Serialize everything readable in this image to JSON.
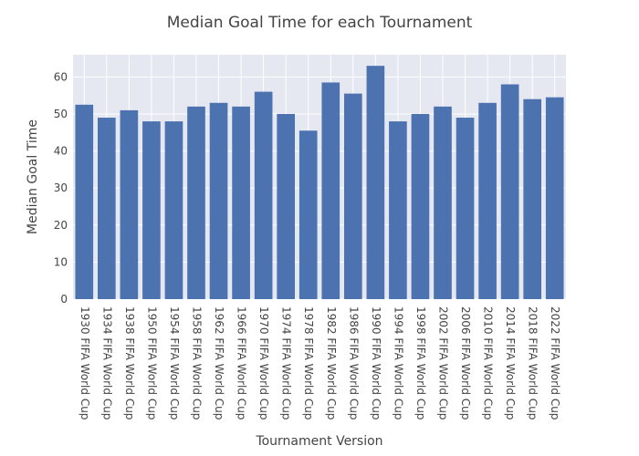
{
  "chart_data": {
    "type": "bar",
    "title": "Median Goal Time for each Tournament",
    "xlabel": "Tournament Version",
    "ylabel": "Median Goal Time",
    "ylim": [
      0,
      66
    ],
    "yticks": [
      0,
      10,
      20,
      30,
      40,
      50,
      60
    ],
    "grid": true,
    "bar_color": "#4c72b0",
    "plot_bg": "#e5e7f1",
    "categories": [
      "1930 FIFA World Cup",
      "1934 FIFA World Cup",
      "1938 FIFA World Cup",
      "1950 FIFA World Cup",
      "1954 FIFA World Cup",
      "1958 FIFA World Cup",
      "1962 FIFA World Cup",
      "1966 FIFA World Cup",
      "1970 FIFA World Cup",
      "1974 FIFA World Cup",
      "1978 FIFA World Cup",
      "1982 FIFA World Cup",
      "1986 FIFA World Cup",
      "1990 FIFA World Cup",
      "1994 FIFA World Cup",
      "1998 FIFA World Cup",
      "2002 FIFA World Cup",
      "2006 FIFA World Cup",
      "2010 FIFA World Cup",
      "2014 FIFA World Cup",
      "2018 FIFA World Cup",
      "2022 FIFA World Cup"
    ],
    "values": [
      52.5,
      49,
      51,
      48,
      48,
      52,
      53,
      52,
      56,
      50,
      45.5,
      58.5,
      55.5,
      63,
      48,
      50,
      52,
      49,
      53,
      58,
      54,
      54.5
    ]
  }
}
